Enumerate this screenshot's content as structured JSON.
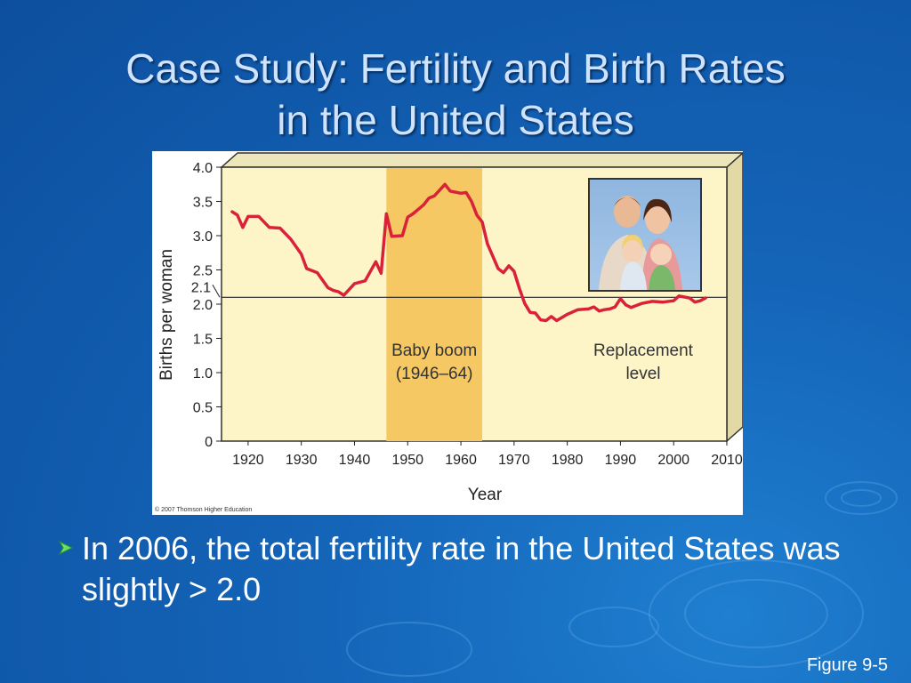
{
  "slide": {
    "title_line1": "Case Study: Fertility and Birth Rates",
    "title_line2": "in the United States",
    "bullet": "In 2006, the total fertility rate in the United States was slightly > 2.0",
    "figure_label": "Figure 9-5",
    "copyright": "© 2007 Thomson Higher Education"
  },
  "colors": {
    "plot_bg": "#fdf5c8",
    "boom_band": "#f6c863",
    "line": "#d9223a",
    "background": "#1464b8"
  },
  "chart_data": {
    "type": "line",
    "xlabel": "Year",
    "ylabel": "Births per woman",
    "xlim": [
      1915,
      2010
    ],
    "ylim": [
      0,
      4.0
    ],
    "x_ticks": [
      "1920",
      "1930",
      "1940",
      "1950",
      "1960",
      "1970",
      "1980",
      "1990",
      "2000",
      "2010"
    ],
    "y_ticks": [
      "0",
      "0.5",
      "1.0",
      "1.5",
      "2.0",
      "2.5",
      "3.0",
      "3.5",
      "4.0"
    ],
    "replacement_tick": "2.1",
    "replacement_level": 2.1,
    "replacement_label": [
      "Replacement",
      "level"
    ],
    "band": {
      "from": 1946,
      "to": 1964,
      "label": [
        "Baby boom",
        "(1946–64)"
      ]
    },
    "series": [
      {
        "x": [
          1917,
          1918,
          1919,
          1920,
          1922,
          1924,
          1926,
          1928,
          1930,
          1931,
          1933,
          1935,
          1936,
          1937,
          1938,
          1940,
          1942,
          1944,
          1945,
          1946,
          1947,
          1949,
          1950,
          1951,
          1953,
          1954,
          1955,
          1957,
          1958,
          1960,
          1961,
          1962,
          1963,
          1964,
          1965,
          1966,
          1967,
          1968,
          1969,
          1970,
          1971,
          1972,
          1973,
          1974,
          1975,
          1976,
          1977,
          1978,
          1980,
          1982,
          1984,
          1985,
          1986,
          1987,
          1988,
          1989,
          1990,
          1991,
          1992,
          1994,
          1996,
          1998,
          2000,
          2001,
          2003,
          2004,
          2005,
          2006
        ],
        "y": [
          3.35,
          3.3,
          3.12,
          3.28,
          3.28,
          3.12,
          3.11,
          2.95,
          2.73,
          2.52,
          2.46,
          2.24,
          2.2,
          2.18,
          2.13,
          2.3,
          2.34,
          2.62,
          2.45,
          3.32,
          2.99,
          3.0,
          3.27,
          3.32,
          3.45,
          3.55,
          3.58,
          3.75,
          3.65,
          3.62,
          3.63,
          3.5,
          3.3,
          3.2,
          2.88,
          2.7,
          2.52,
          2.46,
          2.56,
          2.48,
          2.23,
          2.01,
          1.88,
          1.87,
          1.77,
          1.76,
          1.82,
          1.76,
          1.85,
          1.92,
          1.93,
          1.96,
          1.9,
          1.92,
          1.93,
          1.96,
          2.08,
          1.99,
          1.95,
          2.01,
          2.04,
          2.03,
          2.05,
          2.12,
          2.09,
          2.03,
          2.05,
          2.09
        ]
      }
    ]
  }
}
